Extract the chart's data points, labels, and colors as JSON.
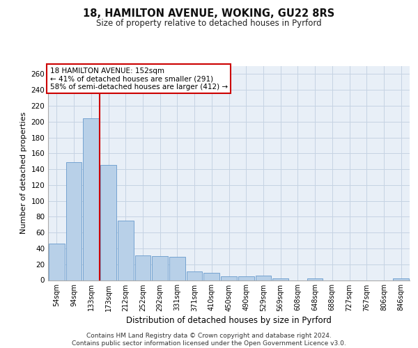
{
  "title1": "18, HAMILTON AVENUE, WOKING, GU22 8RS",
  "title2": "Size of property relative to detached houses in Pyrford",
  "xlabel": "Distribution of detached houses by size in Pyrford",
  "ylabel": "Number of detached properties",
  "categories": [
    "54sqm",
    "94sqm",
    "133sqm",
    "173sqm",
    "212sqm",
    "252sqm",
    "292sqm",
    "331sqm",
    "371sqm",
    "410sqm",
    "450sqm",
    "490sqm",
    "529sqm",
    "569sqm",
    "608sqm",
    "648sqm",
    "688sqm",
    "727sqm",
    "767sqm",
    "806sqm",
    "846sqm"
  ],
  "values": [
    46,
    149,
    204,
    145,
    75,
    31,
    30,
    29,
    11,
    9,
    5,
    5,
    6,
    2,
    0,
    2,
    0,
    0,
    0,
    0,
    2
  ],
  "bar_color": "#b8d0e8",
  "bar_edge_color": "#6699cc",
  "vline_x": 2.5,
  "vline_color": "#cc0000",
  "annotation_line1": "18 HAMILTON AVENUE: 152sqm",
  "annotation_line2": "← 41% of detached houses are smaller (291)",
  "annotation_line3": "58% of semi-detached houses are larger (412) →",
  "ylim_max": 270,
  "yticks": [
    0,
    20,
    40,
    60,
    80,
    100,
    120,
    140,
    160,
    180,
    200,
    220,
    240,
    260
  ],
  "footer": "Contains HM Land Registry data © Crown copyright and database right 2024.\nContains public sector information licensed under the Open Government Licence v3.0.",
  "bg_color": "#e8eff7",
  "grid_color": "#c5d3e3"
}
